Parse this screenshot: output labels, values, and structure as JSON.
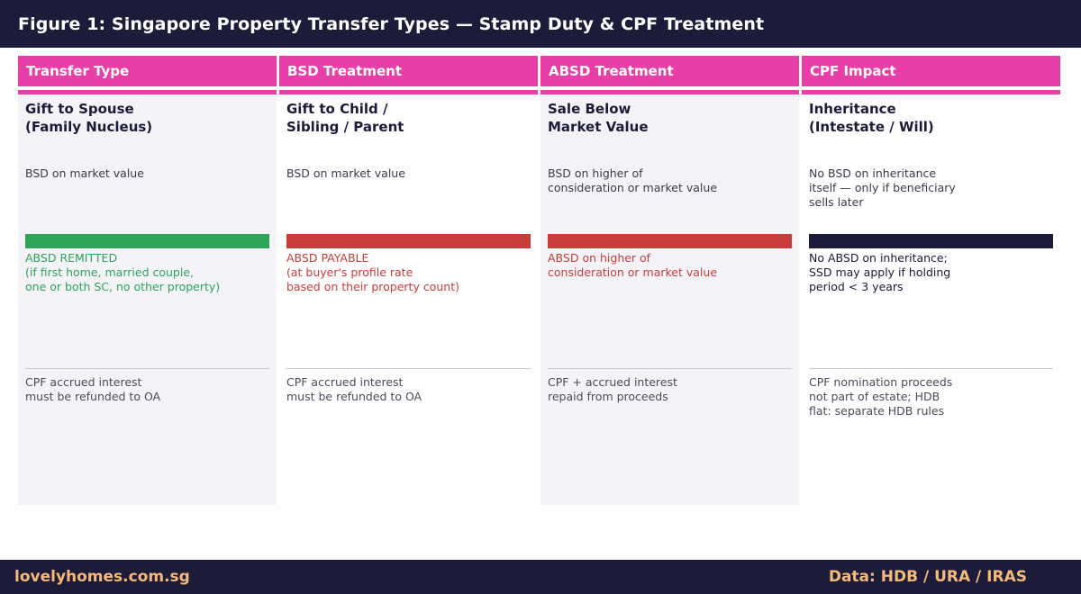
{
  "title": "Figure 1: Singapore Property Transfer Types — Stamp Duty & CPF Treatment",
  "colors": {
    "navy": "#1c1b3a",
    "pink": "#e83ea8",
    "green": "#2ea35a",
    "red": "#c93c3c",
    "orange": "#f5b97a"
  },
  "headers": [
    "Transfer Type",
    "BSD Treatment",
    "ABSD Treatment",
    "CPF Impact"
  ],
  "columns": [
    {
      "name": "Gift to Spouse\n(Family Nucleus)",
      "bsd": "BSD on market value",
      "absd_status": "remitted",
      "absd": "ABSD REMITTED\n(if first home, married couple,\none or both SC, no other property)",
      "cpf": "CPF accrued interest\nmust be refunded to OA"
    },
    {
      "name": "Gift to Child /\nSibling / Parent",
      "bsd": "BSD on market value",
      "absd_status": "payable",
      "absd": "ABSD PAYABLE\n(at buyer's profile rate\nbased on their property count)",
      "cpf": "CPF accrued interest\nmust be refunded to OA"
    },
    {
      "name": "Sale Below\nMarket Value",
      "bsd": "BSD on higher of\nconsideration or market value",
      "absd_status": "payable",
      "absd": "ABSD on higher of\nconsideration or market value",
      "cpf": "CPF + accrued interest\nrepaid from proceeds"
    },
    {
      "name": "Inheritance\n(Intestate / Will)",
      "bsd": "No BSD on inheritance\nitself — only if beneficiary\nsells later",
      "absd_status": "none",
      "absd": "No ABSD on inheritance;\nSSD may apply if holding\nperiod < 3 years",
      "cpf": "CPF nomination proceeds\nnot part of estate; HDB\nflat: separate HDB rules"
    }
  ],
  "footer": {
    "site": "lovelyhomes.com.sg",
    "source": "Data: HDB / URA / IRAS"
  }
}
